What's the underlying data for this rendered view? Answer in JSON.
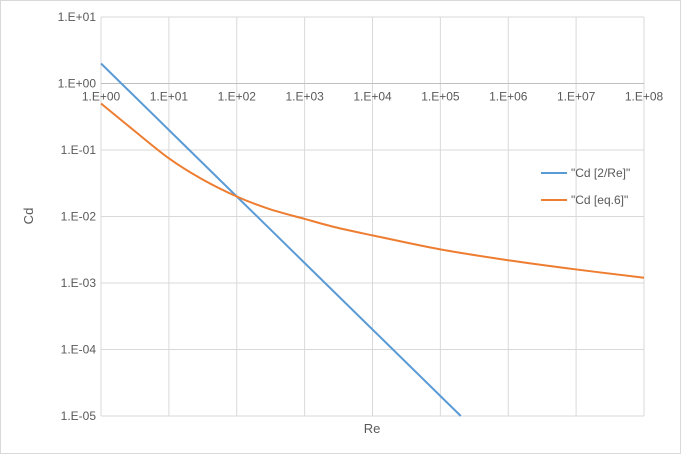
{
  "chart_data": {
    "type": "line",
    "title": "",
    "xlabel": "Re",
    "ylabel": "Cd",
    "x_scale": "log",
    "y_scale": "log",
    "xlim": [
      1,
      100000000
    ],
    "ylim": [
      1e-05,
      10
    ],
    "x_ticks": [
      1,
      10,
      100,
      1000,
      10000,
      100000,
      1000000,
      10000000,
      100000000
    ],
    "x_tick_labels": [
      "1.E+00",
      "1.E+01",
      "1.E+02",
      "1.E+03",
      "1.E+04",
      "1.E+05",
      "1.E+06",
      "1.E+07",
      "1.E+08"
    ],
    "y_ticks": [
      1e-05,
      0.0001,
      0.001,
      0.01,
      0.1,
      1,
      10
    ],
    "y_tick_labels": [
      "1.E-05",
      "1.E-04",
      "1.E-03",
      "1.E-02",
      "1.E-01",
      "1.E+00",
      "1.E+01"
    ],
    "x_axis_crosses_y": 1,
    "grid": true,
    "legend_position": "right",
    "series": [
      {
        "name": "\"Cd [2/Re]\"",
        "color": "#5b9bd5",
        "x": [
          1,
          10,
          100,
          1000,
          10000,
          100000,
          200000
        ],
        "y": [
          2,
          0.2,
          0.02,
          0.002,
          0.0002,
          2e-05,
          1e-05
        ]
      },
      {
        "name": "\"Cd [eq.6]\"",
        "color": "#ed7d31",
        "x": [
          1,
          3,
          10,
          30,
          100,
          300,
          1000,
          3000,
          10000,
          100000,
          1000000,
          10000000,
          100000000
        ],
        "y": [
          0.5,
          0.2,
          0.075,
          0.037,
          0.02,
          0.013,
          0.0092,
          0.0068,
          0.0052,
          0.0032,
          0.0022,
          0.0016,
          0.0012
        ]
      }
    ]
  }
}
